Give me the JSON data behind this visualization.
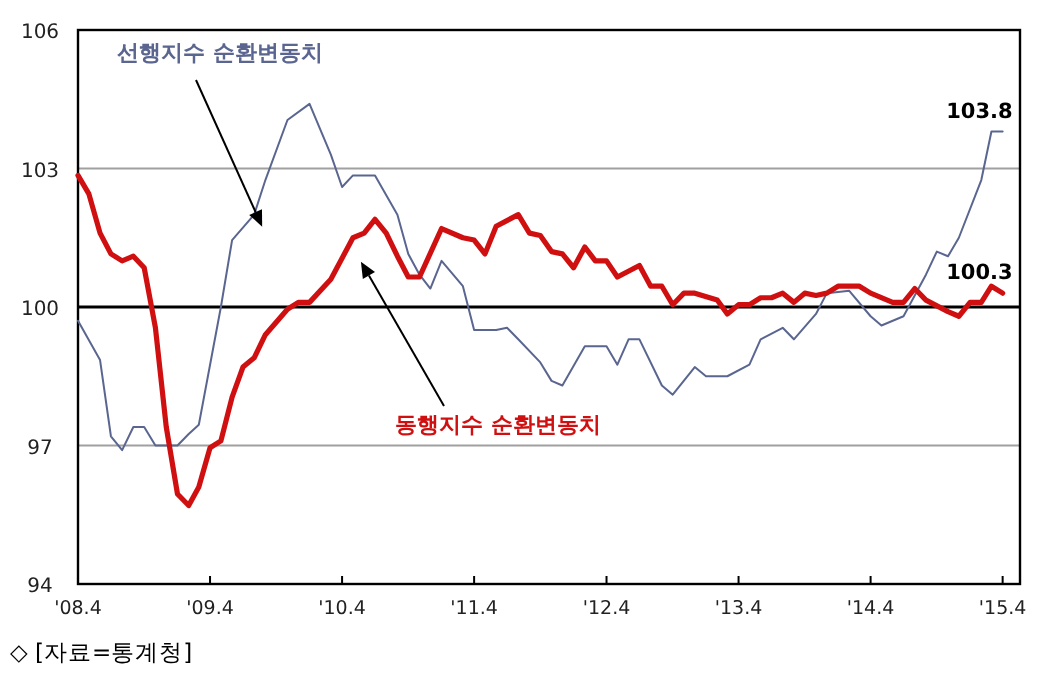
{
  "chart_data": {
    "type": "line",
    "xlim": [
      "2008-04",
      "2015-05-19"
    ],
    "ylim": [
      94,
      106
    ],
    "xticks": [
      {
        "value": "2008-04",
        "label": "'08.4"
      },
      {
        "value": "2009-04",
        "label": "'09.4"
      },
      {
        "value": "2010-04",
        "label": "'10.4"
      },
      {
        "value": "2011-04",
        "label": "'11.4"
      },
      {
        "value": "2012-04",
        "label": "'12.4"
      },
      {
        "value": "2013-04",
        "label": "'13.4"
      },
      {
        "value": "2014-04",
        "label": "'14.4"
      },
      {
        "value": "2015-04",
        "label": "'15.4"
      }
    ],
    "yticks": [
      94,
      97,
      100,
      103,
      106
    ],
    "grid": "y",
    "ref_lines": [
      {
        "axis": "y",
        "value": 100,
        "color": "#000000"
      }
    ],
    "series": [
      {
        "name": "선행지수 순환변동치",
        "color": "#5a6690",
        "x": [
          "2008-04",
          "2008-06",
          "2008-07",
          "2008-08",
          "2008-09",
          "2008-10",
          "2008-11",
          "2009-01",
          "2009-02",
          "2009-03",
          "2009-05",
          "2009-06",
          "2009-08",
          "2009-09",
          "2009-11",
          "2010-01",
          "2010-03",
          "2010-04",
          "2010-05",
          "2010-07",
          "2010-09",
          "2010-10",
          "2010-11",
          "2010-12",
          "2011-01",
          "2011-03",
          "2011-04",
          "2011-06",
          "2011-07",
          "2011-08",
          "2011-10",
          "2011-11",
          "2011-12",
          "2012-02",
          "2012-04",
          "2012-05",
          "2012-06",
          "2012-07",
          "2012-09",
          "2012-10",
          "2012-12",
          "2013-01",
          "2013-03",
          "2013-05",
          "2013-06",
          "2013-08",
          "2013-09",
          "2013-11",
          "2013-12",
          "2014-02",
          "2014-04",
          "2014-05",
          "2014-07",
          "2014-09",
          "2014-10",
          "2014-11",
          "2014-12",
          "2015-02",
          "2015-03",
          "2015-04"
        ],
        "values": [
          99.7,
          98.85,
          97.2,
          96.9,
          97.4,
          97.4,
          97.0,
          97.0,
          97.25,
          97.45,
          100.0,
          101.45,
          102.0,
          102.75,
          104.05,
          104.4,
          103.3,
          102.6,
          102.85,
          102.85,
          102.0,
          101.15,
          100.7,
          100.4,
          101.0,
          100.45,
          99.5,
          99.5,
          99.55,
          99.3,
          98.8,
          98.4,
          98.3,
          99.15,
          99.15,
          98.75,
          99.3,
          99.3,
          98.3,
          98.1,
          98.7,
          98.5,
          98.5,
          98.75,
          99.3,
          99.55,
          99.3,
          99.85,
          100.3,
          100.35,
          99.8,
          99.6,
          99.8,
          100.7,
          101.2,
          101.1,
          101.5,
          102.75,
          103.8,
          103.8
        ]
      },
      {
        "name": "동행지수 순환변동치",
        "color": "#d01010",
        "x": [
          "2008-04",
          "2008-05",
          "2008-06",
          "2008-07",
          "2008-08",
          "2008-09",
          "2008-10",
          "2008-11",
          "2008-12",
          "2009-01",
          "2009-02",
          "2009-03",
          "2009-04",
          "2009-05",
          "2009-06",
          "2009-07",
          "2009-08",
          "2009-09",
          "2009-11",
          "2009-12",
          "2010-01",
          "2010-03",
          "2010-05",
          "2010-06",
          "2010-07",
          "2010-08",
          "2010-09",
          "2010-10",
          "2010-11",
          "2011-01",
          "2011-03",
          "2011-04",
          "2011-05",
          "2011-06",
          "2011-08",
          "2011-09",
          "2011-10",
          "2011-11",
          "2011-12",
          "2012-01",
          "2012-02",
          "2012-03",
          "2012-04",
          "2012-05",
          "2012-07",
          "2012-08",
          "2012-09",
          "2012-10",
          "2012-11",
          "2012-12",
          "2013-02",
          "2013-03",
          "2013-04",
          "2013-05",
          "2013-06",
          "2013-07",
          "2013-08",
          "2013-09",
          "2013-10",
          "2013-11",
          "2013-12",
          "2014-01",
          "2014-03",
          "2014-04",
          "2014-06",
          "2014-07",
          "2014-08",
          "2014-09",
          "2014-11",
          "2014-12",
          "2015-01",
          "2015-02",
          "2015-03",
          "2015-04"
        ],
        "values": [
          102.85,
          102.45,
          101.6,
          101.15,
          101.0,
          101.1,
          100.85,
          99.55,
          97.4,
          95.95,
          95.7,
          96.1,
          96.95,
          97.1,
          98.05,
          98.7,
          98.9,
          99.4,
          99.95,
          100.1,
          100.1,
          100.6,
          101.5,
          101.6,
          101.9,
          101.6,
          101.1,
          100.65,
          100.65,
          101.7,
          101.5,
          101.45,
          101.15,
          101.75,
          102.0,
          101.6,
          101.55,
          101.2,
          101.15,
          100.85,
          101.3,
          101.0,
          101.0,
          100.65,
          100.9,
          100.45,
          100.45,
          100.05,
          100.3,
          100.3,
          100.15,
          99.85,
          100.05,
          100.05,
          100.2,
          100.2,
          100.3,
          100.1,
          100.3,
          100.25,
          100.3,
          100.45,
          100.45,
          100.3,
          100.1,
          100.1,
          100.4,
          100.15,
          99.9,
          99.8,
          100.1,
          100.1,
          100.45,
          100.3
        ]
      }
    ],
    "annotations": [
      {
        "text": "103.8",
        "x": "2015-04",
        "y": 103.8
      },
      {
        "text": "100.3",
        "x": "2015-04",
        "y": 100.3
      },
      "◇ [자료=통계청]"
    ]
  }
}
